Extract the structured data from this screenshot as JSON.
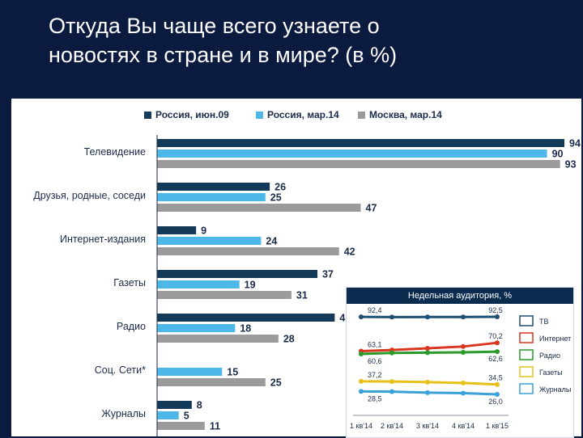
{
  "slide": {
    "title_line1": "Откуда Вы чаще всего узнаете о",
    "title_line2": "новостях в стране и в мире? (в %)"
  },
  "colors": {
    "background": "#0b1a3f",
    "series": [
      "#143a5a",
      "#4db8e8",
      "#9b9b9b"
    ],
    "inset": [
      "#1f4f73",
      "#d9351f",
      "#2a9a2a",
      "#e8c01a",
      "#3aa0d8"
    ]
  },
  "chart_data": [
    {
      "type": "bar",
      "title": "",
      "orientation": "horizontal",
      "categories": [
        "Телевидение",
        "Друзья, родные, соседи",
        "Интернет-издания",
        "Газеты",
        "Радио",
        "Соц. Сети*",
        "Журналы"
      ],
      "series": [
        {
          "name": "Россия, июн.09",
          "values": [
            94,
            26,
            9,
            37,
            41,
            null,
            8
          ]
        },
        {
          "name": "Россия, мар.14",
          "values": [
            90,
            25,
            24,
            19,
            18,
            15,
            5
          ]
        },
        {
          "name": "Москва, мар.14",
          "values": [
            93,
            47,
            42,
            31,
            28,
            25,
            11
          ]
        }
      ],
      "legend_position": "top",
      "grid": false
    },
    {
      "type": "line",
      "title": "Недельная аудитория, %",
      "x": [
        "1 кв'14",
        "2 кв'14",
        "3 кв'14",
        "4 кв'14",
        "1 кв'15"
      ],
      "series": [
        {
          "name": "ТВ",
          "values": [
            92.4,
            92.2,
            92.3,
            92.3,
            92.5
          ],
          "labels": [
            "92,4",
            "92,5"
          ]
        },
        {
          "name": "Интернет",
          "values": [
            63.1,
            64.0,
            65.5,
            67.0,
            70.2
          ],
          "labels": [
            "63,1",
            "70,2"
          ]
        },
        {
          "name": "Радио",
          "values": [
            60.6,
            61.5,
            61.8,
            62.0,
            62.6
          ],
          "labels": [
            "60,6",
            "62,6"
          ]
        },
        {
          "name": "Газеты",
          "values": [
            37.2,
            37.0,
            36.5,
            35.8,
            34.5
          ],
          "labels": [
            "37,2",
            "34,5"
          ]
        },
        {
          "name": "Журналы",
          "values": [
            28.5,
            28.3,
            27.5,
            27.0,
            26.0
          ],
          "labels": [
            "28,5",
            "26,0"
          ]
        }
      ],
      "icons": [
        "tv-icon",
        "internet-icon",
        "radio-icon",
        "newspaper-icon",
        "magazine-icon"
      ],
      "legend_position": "right",
      "grid": false
    }
  ]
}
